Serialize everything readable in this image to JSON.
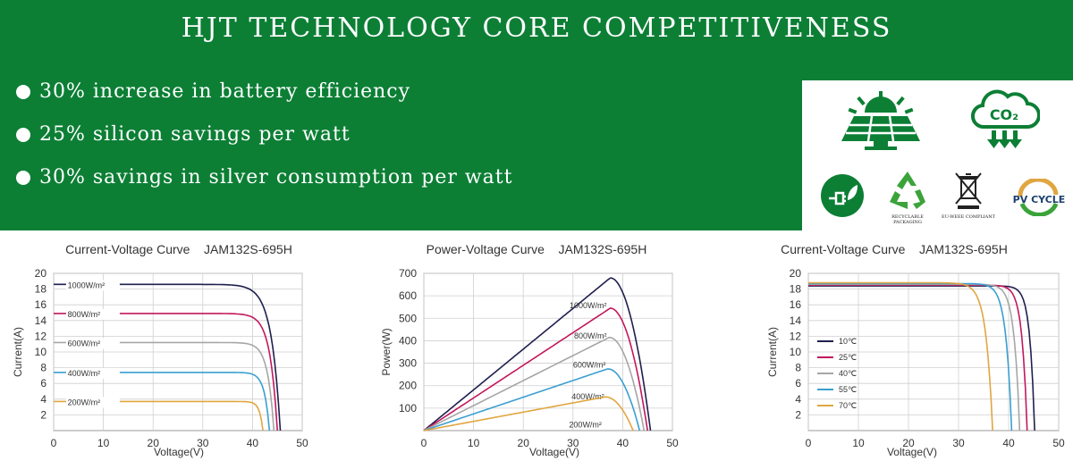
{
  "banner": {
    "title": "HJT TECHNOLOGY CORE COMPETITIVENESS",
    "features": [
      "30% increase in battery efficiency",
      "25% silicon savings per watt",
      "30% savings in silver consumption per watt"
    ]
  },
  "icons": {
    "solar_label": "solar-panel-sun-icon",
    "co2_label": "CO₂",
    "recyclable_caption": "RECYCLABLE PACKAGING",
    "weee_caption": "EU-WEEE COMPLIANT",
    "pvcycle_label": "PV CYCLE"
  },
  "colors": {
    "banner_green": "#0c7f35",
    "series": [
      "#1f1f4f",
      "#c2185b",
      "#a6a6a6",
      "#3a9fd0",
      "#e0a640"
    ]
  },
  "chart_data": [
    {
      "type": "line",
      "title": "Current-Voltage Curve    JAM132S-695H",
      "xlabel": "Voltage(V)",
      "ylabel": "Current(A)",
      "xlim": [
        0,
        50
      ],
      "ylim": [
        0,
        20
      ],
      "xticks": [
        0,
        10,
        20,
        30,
        40,
        50
      ],
      "yticks": [
        2,
        4,
        6,
        8,
        10,
        12,
        14,
        16,
        18,
        20
      ],
      "grid": true,
      "series": [
        {
          "name": "1000W/m²",
          "isc": 18.6,
          "voc": 45.6,
          "knee": 32,
          "color": "#1f1f4f"
        },
        {
          "name": "800W/m²",
          "isc": 14.9,
          "voc": 45.0,
          "knee": 34,
          "color": "#c2185b"
        },
        {
          "name": "600W/m²",
          "isc": 11.2,
          "voc": 44.3,
          "knee": 35,
          "color": "#a6a6a6"
        },
        {
          "name": "400W/m²",
          "isc": 7.4,
          "voc": 43.4,
          "knee": 36,
          "color": "#3a9fd0"
        },
        {
          "name": "200W/m²",
          "isc": 3.7,
          "voc": 42.1,
          "knee": 37,
          "color": "#e0a640"
        }
      ]
    },
    {
      "type": "line",
      "title": "Power-Voltage Curve    JAM132S-695H",
      "xlabel": "Voltage(V)",
      "ylabel": "Power(W)",
      "xlim": [
        0,
        50
      ],
      "ylim": [
        0,
        700
      ],
      "xticks": [
        0,
        10,
        20,
        30,
        40,
        50
      ],
      "yticks": [
        100,
        200,
        300,
        400,
        500,
        600,
        700
      ],
      "grid": true,
      "series": [
        {
          "name": "1000W/m²",
          "vmp": 37.5,
          "pmax": 680,
          "voc": 45.6,
          "color": "#1f1f4f"
        },
        {
          "name": "800W/m²",
          "vmp": 37.5,
          "pmax": 545,
          "voc": 45.0,
          "color": "#c2185b"
        },
        {
          "name": "600W/m²",
          "vmp": 37.3,
          "pmax": 415,
          "voc": 44.3,
          "color": "#a6a6a6"
        },
        {
          "name": "400W/m²",
          "vmp": 37.0,
          "pmax": 275,
          "voc": 43.4,
          "color": "#3a9fd0"
        },
        {
          "name": "200W/m²",
          "vmp": 36.5,
          "pmax": 150,
          "voc": 42.1,
          "color": "#e0a640"
        }
      ]
    },
    {
      "type": "line",
      "title": "Current-Voltage Curve    JAM132S-695H",
      "xlabel": "Voltage(V)",
      "ylabel": "Current(A)",
      "xlim": [
        0,
        50
      ],
      "ylim": [
        0,
        20
      ],
      "xticks": [
        0,
        10,
        20,
        30,
        40,
        50
      ],
      "yticks": [
        2,
        4,
        6,
        8,
        10,
        12,
        14,
        16,
        18,
        20
      ],
      "grid": true,
      "legend": "left",
      "series": [
        {
          "name": "10℃",
          "isc": 18.4,
          "voc": 45.2,
          "knee": 38,
          "color": "#1f1f4f"
        },
        {
          "name": "25℃",
          "isc": 18.5,
          "voc": 43.7,
          "knee": 36,
          "color": "#c2185b"
        },
        {
          "name": "40℃",
          "isc": 18.6,
          "voc": 42.2,
          "knee": 34,
          "color": "#a6a6a6"
        },
        {
          "name": "55℃",
          "isc": 18.7,
          "voc": 40.6,
          "knee": 32,
          "color": "#3a9fd0"
        },
        {
          "name": "70℃",
          "isc": 18.8,
          "voc": 36.8,
          "knee": 27,
          "color": "#e0a640"
        }
      ]
    }
  ]
}
